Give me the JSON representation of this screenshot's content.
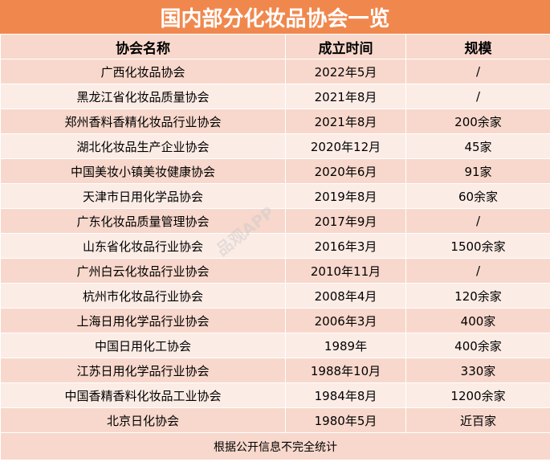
{
  "title": "国内部分化妆品协会一览",
  "headers": [
    "协会名称",
    "成立时间",
    "规模"
  ],
  "rows": [
    [
      "广西化妆品协会",
      "2022年5月",
      "/"
    ],
    [
      "黑龙江省化妆品质量协会",
      "2021年8月",
      "/"
    ],
    [
      "郑州香料香精化妆品行业协会",
      "2021年8月",
      "200余家"
    ],
    [
      "湖北化妆品生产企业协会",
      "2020年12月",
      "45家"
    ],
    [
      "中国美妆小镇美妆健康协会",
      "2020年6月",
      "91家"
    ],
    [
      "天津市日用化学品协会",
      "2019年8月",
      "60余家"
    ],
    [
      "广东化妆品质量管理协会",
      "2017年9月",
      "/"
    ],
    [
      "山东省化妆品行业协会",
      "2016年3月",
      "1500余家"
    ],
    [
      "广州白云化妆品行业协会",
      "2010年11月",
      "/"
    ],
    [
      "杭州市化妆品行业协会",
      "2008年4月",
      "120余家"
    ],
    [
      "上海日用化学品行业协会",
      "2006年3月",
      "400家"
    ],
    [
      "中国日用化工协会",
      "1989年",
      "400余家"
    ],
    [
      "江苏日用化学品行业协会",
      "1988年10月",
      "330家"
    ],
    [
      "中国香精香料化妆品工业协会",
      "1984年8月",
      "1200余家"
    ],
    [
      "北京日化协会",
      "1980年5月",
      "近百家"
    ]
  ],
  "footer": "根据公开信息不完全统计",
  "watermark": "品观APP",
  "colors": {
    "title_bg": "#f0884e",
    "row_dark": "#f8d8cc",
    "row_light": "#fcece6"
  }
}
